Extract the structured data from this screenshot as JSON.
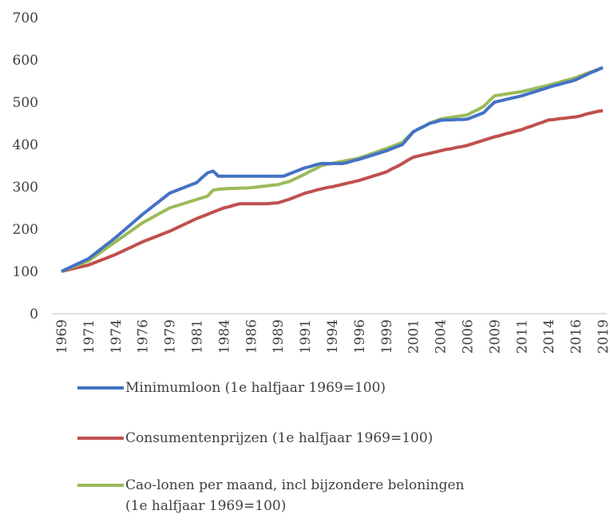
{
  "chart_data": {
    "type": "line",
    "categories": [
      "1969",
      null,
      null,
      null,
      null,
      "1971",
      null,
      null,
      null,
      null,
      "1974",
      null,
      null,
      null,
      null,
      "1976",
      null,
      null,
      null,
      null,
      "1979",
      null,
      null,
      null,
      null,
      "1981",
      null,
      null,
      null,
      null,
      "1984",
      null,
      null,
      null,
      null,
      "1986",
      null,
      null,
      null,
      null,
      "1989",
      null,
      null,
      null,
      null,
      "1991",
      null,
      null,
      null,
      null,
      "1994",
      null,
      null,
      null,
      null,
      "1996",
      null,
      null,
      null,
      null,
      "1999",
      null,
      null,
      null,
      null,
      "2001",
      null,
      null,
      null,
      null,
      "2004",
      null,
      null,
      null,
      null,
      "2006",
      null,
      null,
      null,
      null,
      "2009",
      null,
      null,
      null,
      null,
      "2011",
      null,
      null,
      null,
      null,
      "2014",
      null,
      null,
      null,
      null,
      "2016",
      null,
      null,
      null,
      null,
      "2019"
    ],
    "series": [
      {
        "name": "Minimumloon (1e halfjaar 1969=100)",
        "color": "#4472c4",
        "values": [
          100,
          106,
          112,
          118,
          124,
          130,
          140,
          150,
          160,
          170,
          180,
          191,
          202,
          213,
          224,
          235,
          245,
          255,
          265,
          275,
          285,
          290,
          295,
          300,
          305,
          310,
          322,
          333,
          337,
          325,
          325,
          325,
          325,
          325,
          325,
          325,
          325,
          325,
          325,
          325,
          325,
          325,
          330,
          335,
          340,
          345,
          348,
          352,
          355,
          355,
          355,
          355,
          355,
          358,
          362,
          365,
          369,
          373,
          377,
          381,
          385,
          390,
          395,
          400,
          415,
          430,
          437,
          443,
          450,
          453,
          457,
          458,
          458,
          459,
          459,
          460,
          465,
          470,
          475,
          488,
          500,
          503,
          506,
          509,
          512,
          515,
          519,
          523,
          527,
          531,
          535,
          539,
          542,
          546,
          549,
          553,
          559,
          565,
          571,
          576,
          582
        ]
      },
      {
        "name": "Consumentenprijzen (1e halfjaar 1969=100)",
        "color": "#c0504d",
        "values": [
          100,
          103,
          106,
          109,
          112,
          115,
          120,
          125,
          130,
          135,
          140,
          146,
          152,
          158,
          164,
          170,
          175,
          180,
          185,
          190,
          195,
          201,
          207,
          213,
          219,
          225,
          230,
          235,
          240,
          245,
          250,
          253,
          257,
          260,
          260,
          260,
          260,
          260,
          260,
          261,
          262,
          266,
          270,
          275,
          280,
          285,
          288,
          292,
          295,
          298,
          300,
          303,
          306,
          309,
          312,
          315,
          319,
          323,
          327,
          331,
          335,
          342,
          348,
          355,
          363,
          370,
          373,
          376,
          379,
          382,
          385,
          388,
          390,
          393,
          395,
          398,
          402,
          406,
          410,
          414,
          418,
          421,
          425,
          428,
          432,
          435,
          440,
          444,
          449,
          453,
          458,
          459,
          461,
          462,
          464,
          465,
          468,
          472,
          475,
          478,
          480
        ]
      },
      {
        "name": "Cao-lonen per maand, incl bijzondere beloningen (1e halfjaar 1969=100)",
        "color": "#9bbb59",
        "values": [
          100,
          105,
          110,
          115,
          120,
          125,
          134,
          143,
          152,
          161,
          170,
          179,
          188,
          197,
          206,
          215,
          222,
          229,
          236,
          243,
          250,
          254,
          258,
          262,
          266,
          270,
          274,
          278,
          292,
          294,
          295,
          296,
          296,
          297,
          297,
          298,
          299,
          301,
          302,
          304,
          305,
          309,
          312,
          318,
          324,
          330,
          337,
          343,
          350,
          353,
          355,
          358,
          360,
          363,
          365,
          368,
          372,
          377,
          381,
          386,
          390,
          395,
          400,
          405,
          418,
          430,
          437,
          443,
          450,
          455,
          460,
          462,
          464,
          466,
          468,
          470,
          477,
          483,
          490,
          503,
          515,
          517,
          519,
          521,
          523,
          525,
          528,
          531,
          534,
          537,
          540,
          544,
          547,
          551,
          554,
          558,
          563,
          568,
          572,
          577,
          582
        ]
      }
    ],
    "ylim": [
      0,
      700
    ],
    "yticks": [
      0,
      100,
      200,
      300,
      400,
      500,
      600,
      700
    ],
    "legend": "bottom"
  }
}
